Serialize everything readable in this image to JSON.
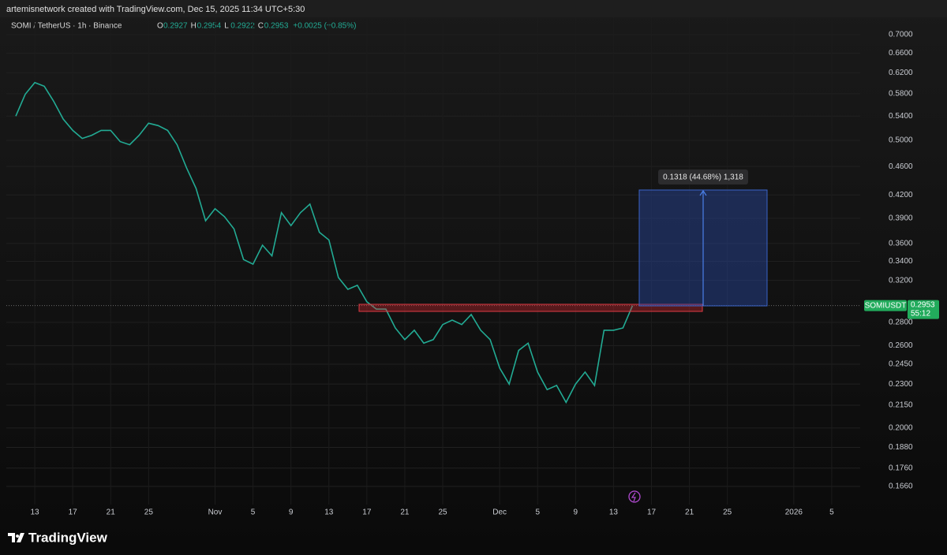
{
  "header": {
    "attribution": "artemisnetwork created with TradingView.com, Dec 15, 2025 11:34 UTC+5:30"
  },
  "chart_data": {
    "type": "line",
    "title": "SOMI / TetherUS · 1h · Binance",
    "ohlc": [
      {
        "label": "O",
        "value": 0.2927
      },
      {
        "label": "H",
        "value": 0.2954
      },
      {
        "label": "L",
        "value": 0.2922
      },
      {
        "label": "C",
        "value": 0.2953
      }
    ],
    "change": "+0.0025 (+0.85%)",
    "x": [
      "2025-10-11",
      "2025-10-12",
      "2025-10-13",
      "2025-10-14",
      "2025-10-15",
      "2025-10-16",
      "2025-10-17",
      "2025-10-18",
      "2025-10-19",
      "2025-10-20",
      "2025-10-21",
      "2025-10-22",
      "2025-10-23",
      "2025-10-24",
      "2025-10-25",
      "2025-10-26",
      "2025-10-27",
      "2025-10-28",
      "2025-10-29",
      "2025-10-30",
      "2025-10-31",
      "2025-11-01",
      "2025-11-02",
      "2025-11-03",
      "2025-11-04",
      "2025-11-05",
      "2025-11-06",
      "2025-11-07",
      "2025-11-08",
      "2025-11-09",
      "2025-11-10",
      "2025-11-11",
      "2025-11-12",
      "2025-11-13",
      "2025-11-14",
      "2025-11-15",
      "2025-11-16",
      "2025-11-17",
      "2025-11-18",
      "2025-11-19",
      "2025-11-20",
      "2025-11-21",
      "2025-11-22",
      "2025-11-23",
      "2025-11-24",
      "2025-11-25",
      "2025-11-26",
      "2025-11-27",
      "2025-11-28",
      "2025-11-29",
      "2025-11-30",
      "2025-12-01",
      "2025-12-02",
      "2025-12-03",
      "2025-12-04",
      "2025-12-05",
      "2025-12-06",
      "2025-12-07",
      "2025-12-08",
      "2025-12-09",
      "2025-12-10",
      "2025-12-11",
      "2025-12-12",
      "2025-12-13",
      "2025-12-14",
      "2025-12-15"
    ],
    "series": [
      {
        "name": "SOMIUSDT",
        "color": "#22ab94",
        "values": [
          0.54,
          0.579,
          0.601,
          0.594,
          0.566,
          0.535,
          0.516,
          0.503,
          0.508,
          0.516,
          0.516,
          0.498,
          0.493,
          0.508,
          0.528,
          0.524,
          0.516,
          0.493,
          0.458,
          0.429,
          0.387,
          0.402,
          0.392,
          0.377,
          0.342,
          0.337,
          0.358,
          0.346,
          0.397,
          0.381,
          0.397,
          0.408,
          0.373,
          0.364,
          0.323,
          0.311,
          0.315,
          0.299,
          0.292,
          0.292,
          0.275,
          0.265,
          0.273,
          0.262,
          0.265,
          0.278,
          0.282,
          0.278,
          0.287,
          0.273,
          0.265,
          0.242,
          0.23,
          0.256,
          0.262,
          0.239,
          0.226,
          0.229,
          0.217,
          0.23,
          0.239,
          0.229,
          0.273,
          0.273,
          0.275,
          0.2953
        ]
      }
    ],
    "xlim": [
      "2025-10-10",
      "2026-01-08"
    ],
    "xticks": [
      {
        "value": "2025-10-13",
        "label": "13"
      },
      {
        "value": "2025-10-17",
        "label": "17"
      },
      {
        "value": "2025-10-21",
        "label": "21"
      },
      {
        "value": "2025-10-25",
        "label": "25"
      },
      {
        "value": "2025-11-01",
        "label": "Nov"
      },
      {
        "value": "2025-11-05",
        "label": "5"
      },
      {
        "value": "2025-11-09",
        "label": "9"
      },
      {
        "value": "2025-11-13",
        "label": "13"
      },
      {
        "value": "2025-11-17",
        "label": "17"
      },
      {
        "value": "2025-11-21",
        "label": "21"
      },
      {
        "value": "2025-11-25",
        "label": "25"
      },
      {
        "value": "2025-12-01",
        "label": "Dec"
      },
      {
        "value": "2025-12-05",
        "label": "5"
      },
      {
        "value": "2025-12-09",
        "label": "9"
      },
      {
        "value": "2025-12-13",
        "label": "13"
      },
      {
        "value": "2025-12-17",
        "label": "17"
      },
      {
        "value": "2025-12-21",
        "label": "21"
      },
      {
        "value": "2025-12-25",
        "label": "25"
      },
      {
        "value": "2026-01-01",
        "label": "2026"
      },
      {
        "value": "2026-01-05",
        "label": "5"
      }
    ],
    "ylim": [
      0.1567,
      0.7397
    ],
    "log_scale": true,
    "grid": true,
    "yticks": [
      {
        "value": 0.7,
        "label": "0.7000"
      },
      {
        "value": 0.66,
        "label": "0.6600"
      },
      {
        "value": 0.62,
        "label": "0.6200"
      },
      {
        "value": 0.58,
        "label": "0.5800"
      },
      {
        "value": 0.54,
        "label": "0.5400"
      },
      {
        "value": 0.5,
        "label": "0.5000"
      },
      {
        "value": 0.46,
        "label": "0.4600"
      },
      {
        "value": 0.42,
        "label": "0.4200"
      },
      {
        "value": 0.39,
        "label": "0.3900"
      },
      {
        "value": 0.36,
        "label": "0.3600"
      },
      {
        "value": 0.34,
        "label": "0.3400"
      },
      {
        "value": 0.32,
        "label": "0.3200"
      },
      {
        "value": 0.28,
        "label": "0.2800"
      },
      {
        "value": 0.26,
        "label": "0.2600"
      },
      {
        "value": 0.245,
        "label": "0.2450"
      },
      {
        "value": 0.23,
        "label": "0.2300"
      },
      {
        "value": 0.215,
        "label": "0.2150"
      },
      {
        "value": 0.2,
        "label": "0.2000"
      },
      {
        "value": 0.188,
        "label": "0.1880"
      },
      {
        "value": 0.176,
        "label": "0.1760"
      },
      {
        "value": 0.166,
        "label": "0.1660"
      }
    ],
    "price_label": {
      "price": 0.2953,
      "countdown": "55:12"
    },
    "measure_label": "0.1318 (44.68%) 1,318"
  },
  "footer": {
    "logo": "TradingView"
  }
}
